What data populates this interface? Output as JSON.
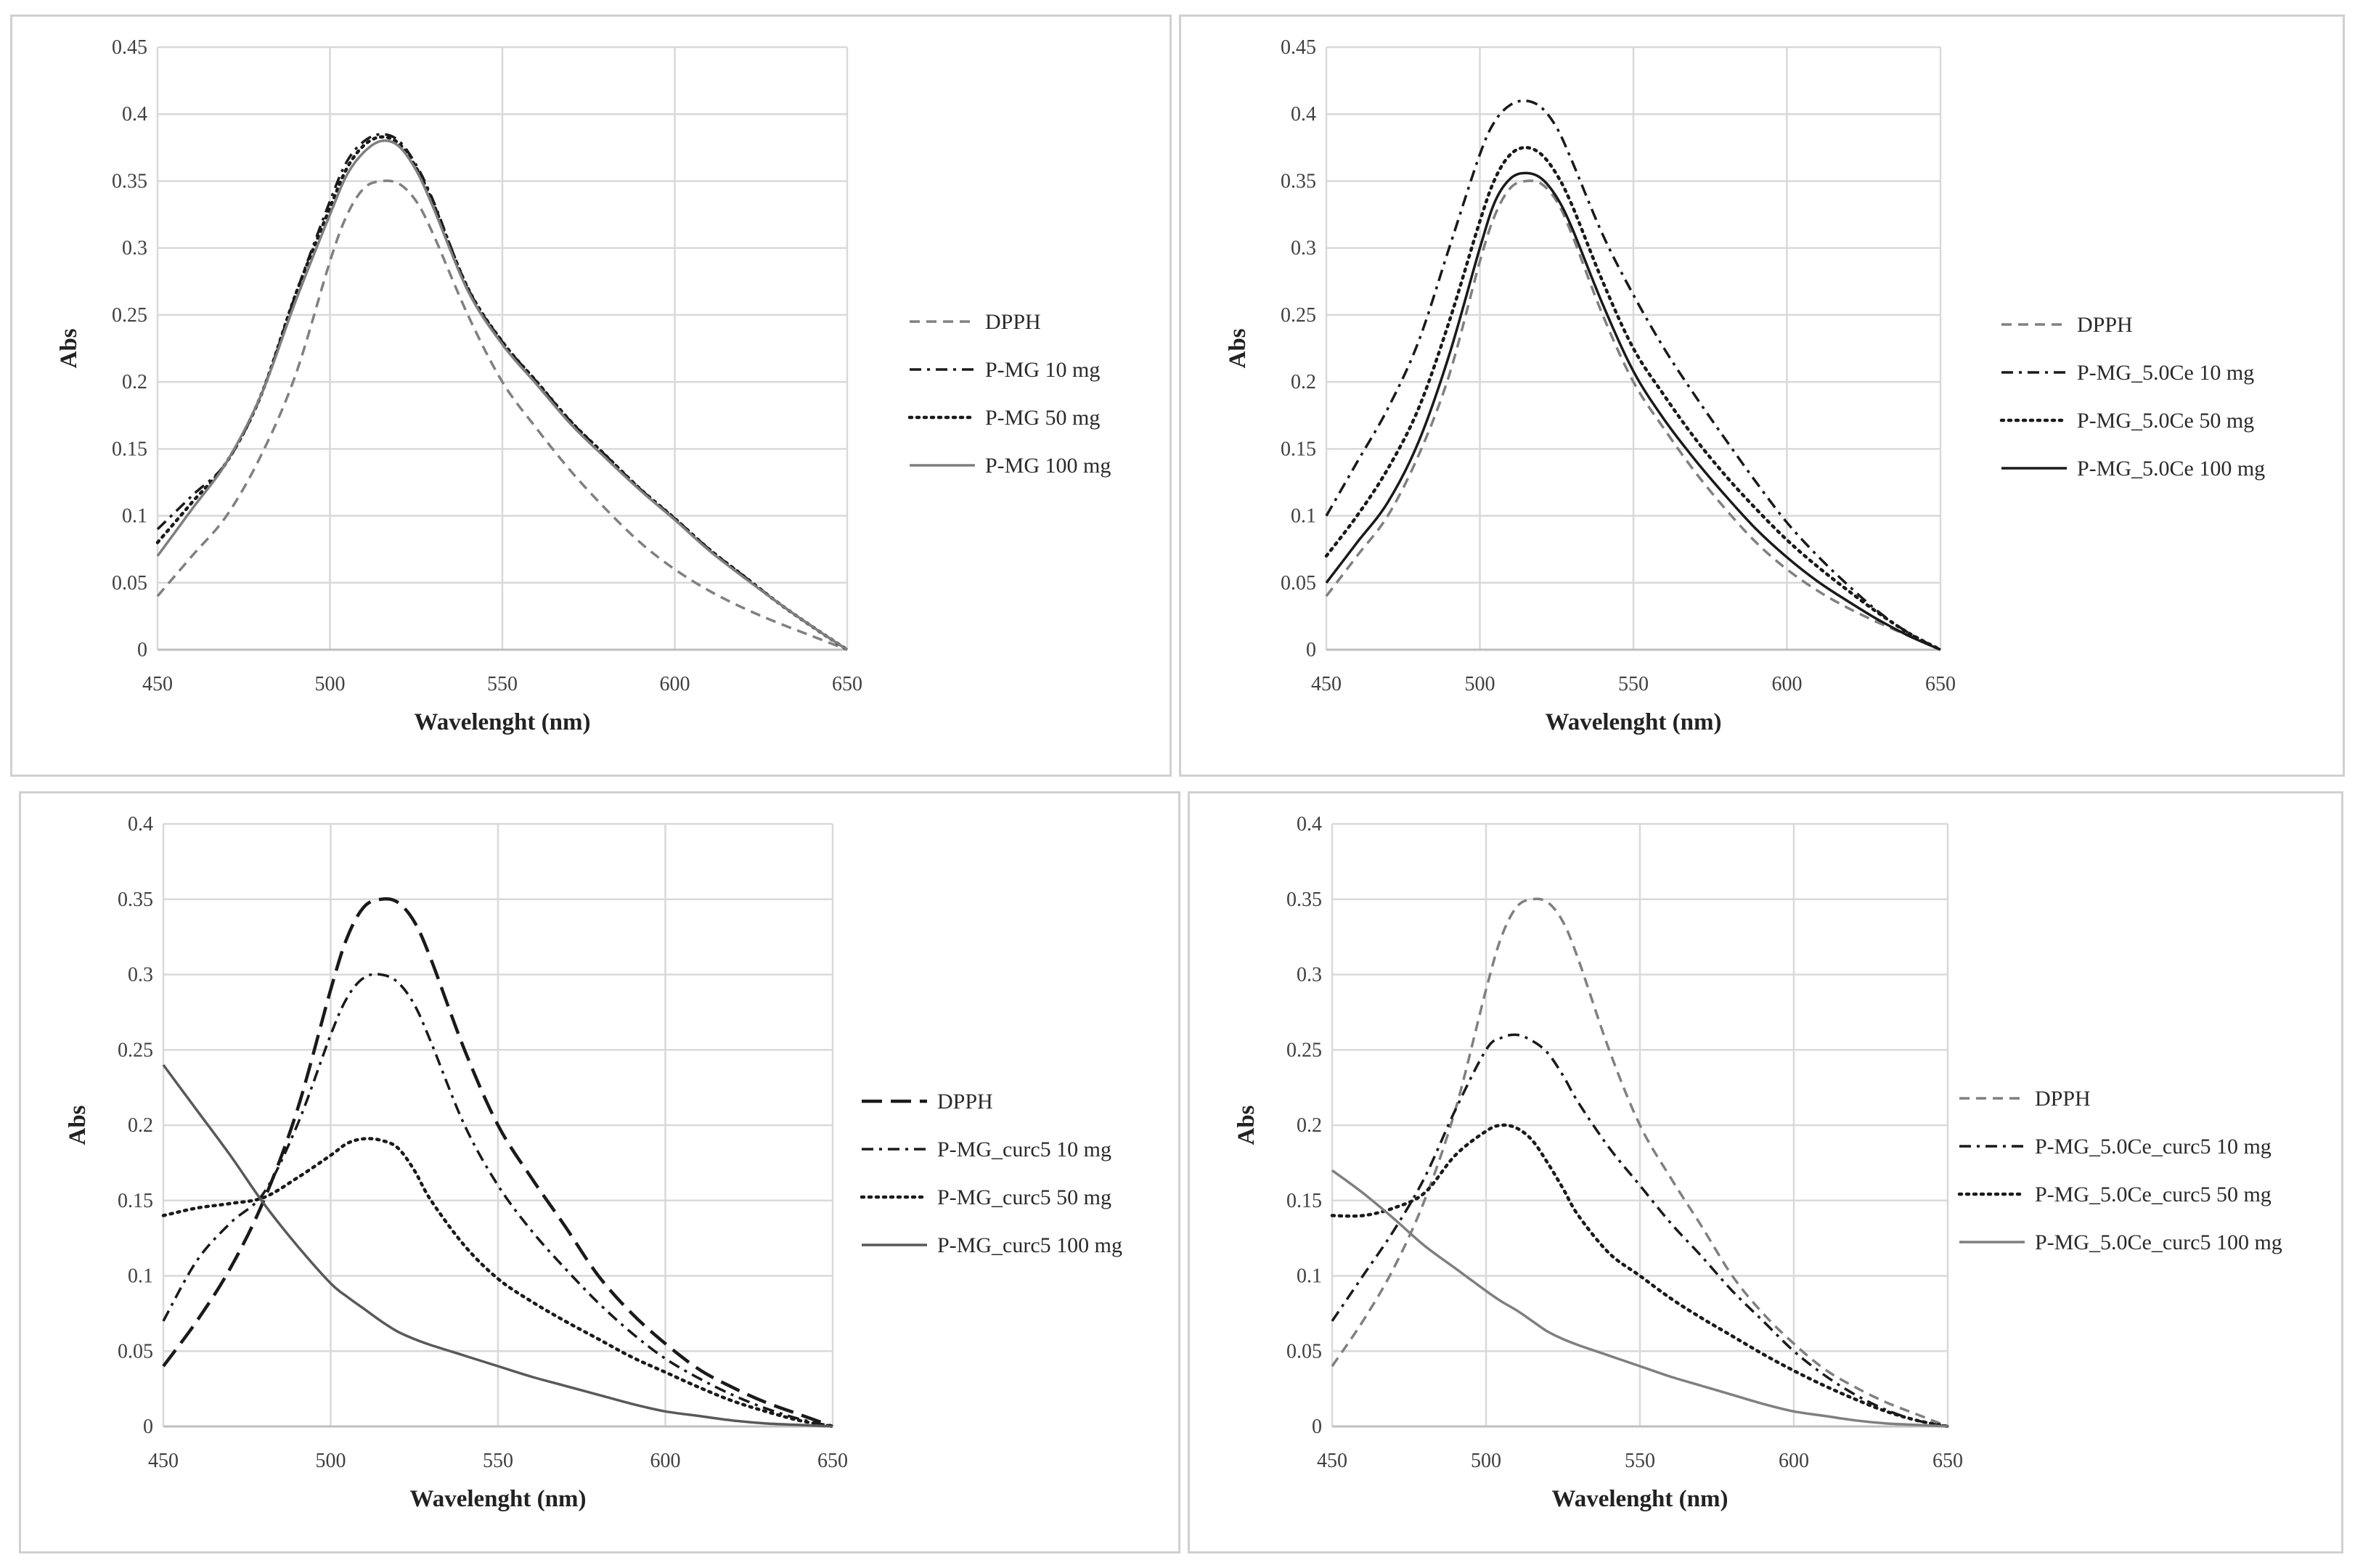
{
  "colors": {
    "grid": "#d9d9d9",
    "axis": "#bfbfbf",
    "dark": "#1a1a1a",
    "mid": "#595959",
    "light": "#808080"
  },
  "chart_data": [
    {
      "type": "line",
      "xlabel": "Wavelenght (nm)",
      "ylabel": "Abs",
      "xlim": [
        450,
        650
      ],
      "ylim": [
        0,
        0.45
      ],
      "xticks": [
        "450",
        "500",
        "550",
        "600",
        "650"
      ],
      "yticks": [
        "0",
        "0.05",
        "0.1",
        "0.15",
        "0.2",
        "0.25",
        "0.3",
        "0.35",
        "0.4",
        "0.45"
      ],
      "legend_position": "right",
      "series": [
        {
          "name": "DPPH",
          "style": "dashed",
          "color": "#808080",
          "x": [
            450,
            460,
            470,
            480,
            490,
            500,
            505,
            510,
            515,
            520,
            525,
            530,
            540,
            550,
            560,
            570,
            580,
            590,
            600,
            610,
            620,
            630,
            640,
            650
          ],
          "y": [
            0.04,
            0.07,
            0.1,
            0.145,
            0.205,
            0.29,
            0.325,
            0.345,
            0.35,
            0.348,
            0.335,
            0.31,
            0.25,
            0.2,
            0.165,
            0.133,
            0.105,
            0.08,
            0.06,
            0.044,
            0.031,
            0.02,
            0.01,
            0
          ]
        },
        {
          "name": "P-MG 10 mg",
          "style": "dashdot",
          "color": "#1a1a1a",
          "x": [
            450,
            460,
            470,
            480,
            490,
            500,
            505,
            510,
            515,
            520,
            525,
            530,
            540,
            550,
            560,
            570,
            580,
            590,
            600,
            610,
            620,
            630,
            640,
            650
          ],
          "y": [
            0.09,
            0.115,
            0.14,
            0.19,
            0.265,
            0.335,
            0.365,
            0.38,
            0.385,
            0.38,
            0.362,
            0.335,
            0.27,
            0.23,
            0.2,
            0.17,
            0.145,
            0.12,
            0.098,
            0.075,
            0.055,
            0.035,
            0.017,
            0
          ]
        },
        {
          "name": "P-MG 50 mg",
          "style": "dotted",
          "color": "#1a1a1a",
          "x": [
            450,
            460,
            470,
            480,
            490,
            500,
            505,
            510,
            515,
            520,
            525,
            530,
            540,
            550,
            560,
            570,
            580,
            590,
            600,
            610,
            620,
            630,
            640,
            650
          ],
          "y": [
            0.08,
            0.11,
            0.14,
            0.19,
            0.265,
            0.33,
            0.36,
            0.377,
            0.383,
            0.378,
            0.36,
            0.333,
            0.27,
            0.23,
            0.2,
            0.17,
            0.145,
            0.12,
            0.098,
            0.075,
            0.055,
            0.035,
            0.017,
            0
          ]
        },
        {
          "name": "P-MG 100 mg",
          "style": "solid",
          "color": "#7f7f7f",
          "x": [
            450,
            460,
            470,
            480,
            490,
            500,
            505,
            510,
            515,
            520,
            525,
            530,
            540,
            550,
            560,
            570,
            580,
            590,
            600,
            610,
            620,
            630,
            640,
            650
          ],
          "y": [
            0.07,
            0.105,
            0.14,
            0.19,
            0.26,
            0.325,
            0.355,
            0.372,
            0.38,
            0.376,
            0.358,
            0.33,
            0.268,
            0.228,
            0.198,
            0.168,
            0.143,
            0.119,
            0.097,
            0.074,
            0.054,
            0.035,
            0.017,
            0
          ]
        }
      ]
    },
    {
      "type": "line",
      "xlabel": "Wavelenght (nm)",
      "ylabel": "Abs",
      "xlim": [
        450,
        650
      ],
      "ylim": [
        0,
        0.45
      ],
      "xticks": [
        "450",
        "500",
        "550",
        "600",
        "650"
      ],
      "yticks": [
        "0",
        "0.05",
        "0.1",
        "0.15",
        "0.2",
        "0.25",
        "0.3",
        "0.35",
        "0.4",
        "0.45"
      ],
      "legend_position": "right",
      "series": [
        {
          "name": "DPPH",
          "style": "dashed",
          "color": "#808080",
          "x": [
            450,
            460,
            470,
            480,
            490,
            500,
            505,
            510,
            515,
            520,
            525,
            530,
            540,
            550,
            560,
            570,
            580,
            590,
            600,
            610,
            620,
            630,
            640,
            650
          ],
          "y": [
            0.04,
            0.07,
            0.1,
            0.145,
            0.205,
            0.29,
            0.325,
            0.345,
            0.35,
            0.348,
            0.335,
            0.31,
            0.25,
            0.2,
            0.165,
            0.133,
            0.105,
            0.08,
            0.06,
            0.044,
            0.031,
            0.02,
            0.01,
            0
          ]
        },
        {
          "name": "P-MG_5.0Ce 10 mg",
          "style": "dashdot",
          "color": "#1a1a1a",
          "x": [
            450,
            460,
            470,
            480,
            490,
            500,
            505,
            510,
            515,
            520,
            525,
            530,
            540,
            550,
            560,
            570,
            580,
            590,
            600,
            610,
            620,
            630,
            640,
            650
          ],
          "y": [
            0.1,
            0.14,
            0.18,
            0.23,
            0.3,
            0.37,
            0.395,
            0.407,
            0.41,
            0.405,
            0.39,
            0.365,
            0.31,
            0.265,
            0.225,
            0.19,
            0.157,
            0.125,
            0.095,
            0.07,
            0.048,
            0.028,
            0.012,
            0
          ]
        },
        {
          "name": "P-MG_5.0Ce 50 mg",
          "style": "dotted",
          "color": "#1a1a1a",
          "x": [
            450,
            460,
            470,
            480,
            490,
            500,
            505,
            510,
            515,
            520,
            525,
            530,
            540,
            550,
            560,
            570,
            580,
            590,
            600,
            610,
            620,
            630,
            640,
            650
          ],
          "y": [
            0.07,
            0.1,
            0.135,
            0.18,
            0.245,
            0.32,
            0.352,
            0.37,
            0.375,
            0.37,
            0.355,
            0.332,
            0.275,
            0.225,
            0.19,
            0.158,
            0.13,
            0.105,
            0.082,
            0.062,
            0.044,
            0.027,
            0.012,
            0
          ]
        },
        {
          "name": "P-MG_5.0Ce 100 mg",
          "style": "solid",
          "color": "#1a1a1a",
          "x": [
            450,
            460,
            470,
            480,
            490,
            500,
            505,
            510,
            515,
            520,
            525,
            530,
            540,
            550,
            560,
            570,
            580,
            590,
            600,
            610,
            620,
            630,
            640,
            650
          ],
          "y": [
            0.05,
            0.08,
            0.11,
            0.155,
            0.22,
            0.3,
            0.335,
            0.352,
            0.356,
            0.352,
            0.338,
            0.315,
            0.258,
            0.208,
            0.172,
            0.142,
            0.115,
            0.09,
            0.069,
            0.051,
            0.036,
            0.022,
            0.01,
            0
          ]
        }
      ]
    },
    {
      "type": "line",
      "xlabel": "Wavelenght (nm)",
      "ylabel": "Abs",
      "xlim": [
        450,
        650
      ],
      "ylim": [
        0,
        0.4
      ],
      "xticks": [
        "450",
        "500",
        "550",
        "600",
        "650"
      ],
      "yticks": [
        "0",
        "0.05",
        "0.1",
        "0.15",
        "0.2",
        "0.25",
        "0.3",
        "0.35",
        "0.4"
      ],
      "legend_position": "right",
      "series": [
        {
          "name": "DPPH",
          "style": "longdash",
          "color": "#1a1a1a",
          "x": [
            450,
            460,
            470,
            480,
            490,
            500,
            505,
            510,
            515,
            520,
            525,
            530,
            540,
            550,
            560,
            570,
            580,
            590,
            600,
            610,
            620,
            630,
            640,
            650
          ],
          "y": [
            0.04,
            0.07,
            0.105,
            0.15,
            0.21,
            0.29,
            0.325,
            0.345,
            0.35,
            0.348,
            0.335,
            0.31,
            0.25,
            0.2,
            0.165,
            0.133,
            0.1,
            0.075,
            0.055,
            0.038,
            0.026,
            0.016,
            0.008,
            0
          ]
        },
        {
          "name": "P-MG_curc5 10 mg",
          "style": "dashdot",
          "color": "#1a1a1a",
          "x": [
            450,
            460,
            470,
            480,
            490,
            500,
            505,
            510,
            515,
            520,
            525,
            530,
            540,
            550,
            560,
            570,
            580,
            590,
            600,
            610,
            620,
            630,
            640,
            650
          ],
          "y": [
            0.07,
            0.11,
            0.135,
            0.155,
            0.2,
            0.26,
            0.285,
            0.298,
            0.3,
            0.295,
            0.28,
            0.255,
            0.2,
            0.16,
            0.13,
            0.105,
            0.082,
            0.062,
            0.045,
            0.032,
            0.021,
            0.012,
            0.005,
            0
          ]
        },
        {
          "name": "P-MG_curc5 50 mg",
          "style": "dotted",
          "color": "#1a1a1a",
          "x": [
            450,
            460,
            470,
            480,
            490,
            500,
            505,
            510,
            515,
            520,
            525,
            530,
            540,
            550,
            560,
            570,
            580,
            590,
            600,
            610,
            620,
            630,
            640,
            650
          ],
          "y": [
            0.14,
            0.145,
            0.148,
            0.152,
            0.165,
            0.18,
            0.188,
            0.191,
            0.19,
            0.185,
            0.17,
            0.15,
            0.12,
            0.098,
            0.083,
            0.07,
            0.058,
            0.046,
            0.036,
            0.026,
            0.017,
            0.01,
            0.004,
            0
          ]
        },
        {
          "name": "P-MG_curc5 100 mg",
          "style": "solid",
          "color": "#595959",
          "x": [
            450,
            460,
            470,
            480,
            490,
            500,
            505,
            510,
            515,
            520,
            525,
            530,
            540,
            550,
            560,
            570,
            580,
            590,
            600,
            610,
            620,
            630,
            640,
            650
          ],
          "y": [
            0.24,
            0.21,
            0.18,
            0.148,
            0.12,
            0.095,
            0.086,
            0.078,
            0.07,
            0.063,
            0.058,
            0.054,
            0.047,
            0.04,
            0.033,
            0.027,
            0.021,
            0.015,
            0.01,
            0.007,
            0.004,
            0.002,
            0.001,
            0
          ]
        }
      ]
    },
    {
      "type": "line",
      "xlabel": "Wavelenght (nm)",
      "ylabel": "Abs",
      "xlim": [
        450,
        650
      ],
      "ylim": [
        0,
        0.4
      ],
      "xticks": [
        "450",
        "500",
        "550",
        "600",
        "650"
      ],
      "yticks": [
        "0",
        "0.05",
        "0.1",
        "0.15",
        "0.2",
        "0.25",
        "0.3",
        "0.35",
        "0.4"
      ],
      "legend_position": "right",
      "series": [
        {
          "name": "DPPH",
          "style": "dashed",
          "color": "#808080",
          "x": [
            450,
            460,
            470,
            480,
            490,
            500,
            505,
            510,
            515,
            520,
            525,
            530,
            540,
            550,
            560,
            570,
            580,
            590,
            600,
            610,
            620,
            630,
            640,
            650
          ],
          "y": [
            0.04,
            0.07,
            0.105,
            0.15,
            0.21,
            0.29,
            0.325,
            0.345,
            0.35,
            0.348,
            0.335,
            0.31,
            0.25,
            0.2,
            0.165,
            0.133,
            0.1,
            0.075,
            0.055,
            0.038,
            0.026,
            0.016,
            0.008,
            0
          ]
        },
        {
          "name": "P-MG_5.0Ce_curc5 10 mg",
          "style": "dashdot",
          "color": "#1a1a1a",
          "x": [
            450,
            460,
            470,
            480,
            490,
            500,
            505,
            510,
            515,
            520,
            525,
            530,
            540,
            550,
            560,
            570,
            580,
            590,
            600,
            610,
            620,
            630,
            640,
            650
          ],
          "y": [
            0.07,
            0.1,
            0.13,
            0.165,
            0.21,
            0.25,
            0.258,
            0.26,
            0.256,
            0.248,
            0.233,
            0.215,
            0.185,
            0.16,
            0.135,
            0.113,
            0.09,
            0.07,
            0.05,
            0.034,
            0.021,
            0.011,
            0.004,
            0
          ]
        },
        {
          "name": "P-MG_5.0Ce_curc5 50 mg",
          "style": "dotted",
          "color": "#1a1a1a",
          "x": [
            450,
            460,
            470,
            480,
            490,
            500,
            505,
            510,
            515,
            520,
            525,
            530,
            540,
            550,
            560,
            570,
            580,
            590,
            600,
            610,
            620,
            630,
            640,
            650
          ],
          "y": [
            0.14,
            0.14,
            0.145,
            0.155,
            0.18,
            0.196,
            0.2,
            0.198,
            0.19,
            0.175,
            0.158,
            0.14,
            0.115,
            0.1,
            0.085,
            0.072,
            0.06,
            0.048,
            0.037,
            0.027,
            0.018,
            0.01,
            0.004,
            0
          ]
        },
        {
          "name": "P-MG_5.0Ce_curc5 100 mg",
          "style": "solid",
          "color": "#7f7f7f",
          "x": [
            450,
            460,
            470,
            480,
            490,
            500,
            505,
            510,
            515,
            520,
            525,
            530,
            540,
            550,
            560,
            570,
            580,
            590,
            600,
            610,
            620,
            630,
            640,
            650
          ],
          "y": [
            0.17,
            0.155,
            0.138,
            0.12,
            0.105,
            0.09,
            0.083,
            0.077,
            0.07,
            0.063,
            0.058,
            0.054,
            0.047,
            0.04,
            0.033,
            0.027,
            0.021,
            0.015,
            0.01,
            0.007,
            0.004,
            0.002,
            0.001,
            0
          ]
        }
      ]
    }
  ]
}
